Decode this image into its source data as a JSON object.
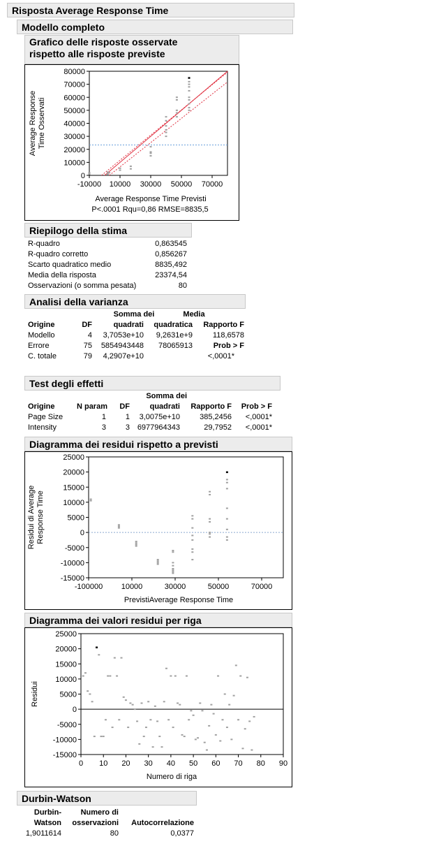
{
  "report": {
    "title": "Risposta Average Response Time",
    "model_title": "Modello completo"
  },
  "actual_by_predicted": {
    "title_line1": "Grafico delle risposte osservate",
    "title_line2": "rispetto alle risposte previste",
    "ylabel_line1": "Average Response",
    "ylabel_line2": "Time Osservati",
    "xlabel": "Average Response Time Previsti",
    "stats_caption": "P<.0001 Rqu=0,86 RMSE=8835,5",
    "y_ticks": [
      "80000",
      "70000",
      "60000",
      "50000",
      "40000",
      "30000",
      "20000",
      "10000",
      "0"
    ],
    "x_ticks": [
      "-10000",
      "10000",
      "30000",
      "50000",
      "70000"
    ]
  },
  "summary_of_fit": {
    "title": "Riepilogo della stima",
    "rows": [
      {
        "label": "R-quadro",
        "value": "0,863545"
      },
      {
        "label": "R-quadro corretto",
        "value": "0,856267"
      },
      {
        "label": "Scarto quadratico medio",
        "value": "8835,492"
      },
      {
        "label": "Media della risposta",
        "value": "23374,54"
      },
      {
        "label": "Osservazioni (o somma pesata)",
        "value": "80"
      }
    ]
  },
  "anova": {
    "title": "Analisi della varianza",
    "headers": {
      "origine": "Origine",
      "df": "DF",
      "ss_line1": "Somma dei",
      "ss_line2": "quadrati",
      "ms_line1": "Media",
      "ms_line2": "quadratica",
      "f": "Rapporto F",
      "prob": "Prob > F"
    },
    "rows": [
      {
        "source": "Modello",
        "df": "4",
        "ss": "3,7053e+10",
        "ms": "9,2631e+9",
        "f": "118,6578"
      },
      {
        "source": "Errore",
        "df": "75",
        "ss": "5854943448",
        "ms": "78065913",
        "f": "Prob > F"
      },
      {
        "source": "C. totale",
        "df": "79",
        "ss": "4,2907e+10",
        "ms": "",
        "f": "<,0001*"
      }
    ]
  },
  "effect_tests": {
    "title": "Test degli effetti",
    "headers": {
      "origine": "Origine",
      "nparam": "N param",
      "df": "DF",
      "ss_line1": "Somma dei",
      "ss_line2": "quadrati",
      "f": "Rapporto F",
      "prob": "Prob > F"
    },
    "rows": [
      {
        "source": "Page Size",
        "nparam": "1",
        "df": "1",
        "ss": "3,0075e+10",
        "f": "385,2456",
        "prob": "<,0001*"
      },
      {
        "source": "Intensity",
        "nparam": "3",
        "df": "3",
        "ss": "6977964343",
        "f": "29,7952",
        "prob": "<,0001*"
      }
    ]
  },
  "residual_by_predicted": {
    "title": "Diagramma dei residui rispetto a previsti",
    "ylabel_line1": "Residui di Average",
    "ylabel_line2": "Response Time",
    "xlabel": "PrevistiAverage Response Time",
    "y_ticks": [
      "25000",
      "20000",
      "15000",
      "10000",
      "5000",
      "0",
      "-5000",
      "-10000",
      "-15000"
    ],
    "x_ticks": [
      "-100000",
      "10000",
      "30000",
      "50000",
      "70000"
    ]
  },
  "residual_by_row": {
    "title": "Diagramma dei valori residui per riga",
    "ylabel": "Residui",
    "xlabel": "Numero di riga",
    "y_ticks": [
      "25000",
      "20000",
      "15000",
      "10000",
      "5000",
      "0",
      "-5000",
      "-10000",
      "-15000"
    ],
    "x_ticks": [
      "0",
      "10",
      "20",
      "30",
      "40",
      "50",
      "60",
      "70",
      "80",
      "90"
    ]
  },
  "durbin_watson": {
    "title": "Durbin-Watson",
    "headers": {
      "dw_line1": "Durbin-",
      "dw_line2": "Watson",
      "n_line1": "Numero di",
      "n_line2": "osservazioni",
      "auto": "Autocorrelazione"
    },
    "row": {
      "dw": "1,9011614",
      "n": "80",
      "auto": "0,0377"
    }
  },
  "colors": {
    "fit_line": "#e03040",
    "mean_line": "#6aa0dc",
    "zero_line": "#8aa8d0",
    "point": "#a0a0a0",
    "header_bg": "#ececec"
  },
  "chart_data": [
    {
      "type": "scatter",
      "title": "Grafico delle risposte osservate rispetto alle risposte previste",
      "xlabel": "Average Response Time Previsti",
      "ylabel": "Average Response Time Osservati",
      "xlim": [
        -10000,
        80000
      ],
      "ylim": [
        0,
        80000
      ],
      "fit_line": [
        [
          -10000,
          -10000
        ],
        [
          80000,
          80000
        ]
      ],
      "mean_y": 23375,
      "points": [
        [
          -10000,
          1000
        ],
        [
          -10000,
          2000
        ],
        [
          2000,
          2500
        ],
        [
          2000,
          1000
        ],
        [
          3000,
          2000
        ],
        [
          10000,
          4000
        ],
        [
          10000,
          5500
        ],
        [
          17000,
          5000
        ],
        [
          17000,
          7000
        ],
        [
          30000,
          15000
        ],
        [
          30000,
          17000
        ],
        [
          30000,
          18000
        ],
        [
          30000,
          22000
        ],
        [
          40000,
          30000
        ],
        [
          40000,
          33000
        ],
        [
          40000,
          35000
        ],
        [
          40000,
          38000
        ],
        [
          40000,
          42000
        ],
        [
          40000,
          45000
        ],
        [
          47000,
          45000
        ],
        [
          47000,
          48000
        ],
        [
          47000,
          50000
        ],
        [
          47000,
          58000
        ],
        [
          47000,
          60000
        ],
        [
          55000,
          50000
        ],
        [
          55000,
          52000
        ],
        [
          55000,
          55000
        ],
        [
          55000,
          58000
        ],
        [
          55000,
          60000
        ],
        [
          55000,
          65000
        ],
        [
          55000,
          68000
        ],
        [
          55000,
          70000
        ],
        [
          55000,
          72000
        ],
        [
          55000,
          75000
        ]
      ]
    },
    {
      "type": "scatter",
      "title": "Diagramma dei residui rispetto a previsti",
      "xlabel": "PrevistiAverage Response Time",
      "ylabel": "Residui di Average Response Time",
      "xlim": [
        -10000,
        80000
      ],
      "ylim": [
        -15000,
        25000
      ],
      "points": [
        [
          -9000,
          11000
        ],
        [
          -9000,
          10500
        ],
        [
          4000,
          2500
        ],
        [
          4000,
          2000
        ],
        [
          4000,
          1500
        ],
        [
          12000,
          -3000
        ],
        [
          12000,
          -3500
        ],
        [
          12000,
          -4000
        ],
        [
          12000,
          -4500
        ],
        [
          22000,
          -9000
        ],
        [
          22000,
          -9500
        ],
        [
          22000,
          -10000
        ],
        [
          22000,
          -10500
        ],
        [
          29000,
          -6000
        ],
        [
          29000,
          -6500
        ],
        [
          29000,
          -10000
        ],
        [
          29000,
          -11000
        ],
        [
          29000,
          -12000
        ],
        [
          29000,
          -12500
        ],
        [
          29000,
          -13000
        ],
        [
          29000,
          -13500
        ],
        [
          38000,
          5500
        ],
        [
          38000,
          4500
        ],
        [
          38000,
          1500
        ],
        [
          38000,
          -1000
        ],
        [
          38000,
          -2500
        ],
        [
          38000,
          -5500
        ],
        [
          38000,
          -6500
        ],
        [
          38000,
          -9000
        ],
        [
          46000,
          13500
        ],
        [
          46000,
          12500
        ],
        [
          46000,
          4500
        ],
        [
          46000,
          3500
        ],
        [
          46000,
          0
        ],
        [
          46000,
          -500
        ],
        [
          46000,
          -1500
        ],
        [
          54000,
          20000
        ],
        [
          54000,
          17500
        ],
        [
          54000,
          16500
        ],
        [
          54000,
          14500
        ],
        [
          54000,
          8000
        ],
        [
          54000,
          4500
        ],
        [
          54000,
          1000
        ],
        [
          54000,
          -1500
        ],
        [
          54000,
          -2500
        ]
      ]
    },
    {
      "type": "scatter",
      "title": "Diagramma dei valori residui per riga",
      "xlabel": "Numero di riga",
      "ylabel": "Residui",
      "xlim": [
        0,
        90
      ],
      "ylim": [
        -15000,
        25000
      ],
      "points": [
        [
          1,
          11000
        ],
        [
          2,
          12000
        ],
        [
          3,
          6000
        ],
        [
          4,
          5000
        ],
        [
          5,
          2500
        ],
        [
          6,
          -9000
        ],
        [
          7,
          20500
        ],
        [
          8,
          18000
        ],
        [
          9,
          -9000
        ],
        [
          10,
          -9000
        ],
        [
          11,
          -3500
        ],
        [
          12,
          11000
        ],
        [
          13,
          11000
        ],
        [
          14,
          -6000
        ],
        [
          15,
          17000
        ],
        [
          16,
          11000
        ],
        [
          17,
          -3500
        ],
        [
          18,
          17000
        ],
        [
          19,
          4000
        ],
        [
          20,
          3000
        ],
        [
          21,
          -6000
        ],
        [
          22,
          2000
        ],
        [
          23,
          1500
        ],
        [
          24,
          0
        ],
        [
          25,
          -4000
        ],
        [
          26,
          -11500
        ],
        [
          27,
          2000
        ],
        [
          28,
          -9000
        ],
        [
          29,
          -6000
        ],
        [
          30,
          2500
        ],
        [
          31,
          -3500
        ],
        [
          32,
          -12500
        ],
        [
          33,
          1000
        ],
        [
          34,
          -4000
        ],
        [
          35,
          -9000
        ],
        [
          36,
          -12500
        ],
        [
          37,
          2500
        ],
        [
          38,
          13500
        ],
        [
          39,
          -3500
        ],
        [
          40,
          11000
        ],
        [
          41,
          -6000
        ],
        [
          42,
          11000
        ],
        [
          43,
          2000
        ],
        [
          44,
          1500
        ],
        [
          45,
          -8500
        ],
        [
          46,
          -9000
        ],
        [
          47,
          11000
        ],
        [
          48,
          -3500
        ],
        [
          49,
          -500
        ],
        [
          50,
          -2000
        ],
        [
          51,
          -10000
        ],
        [
          52,
          -9500
        ],
        [
          53,
          2000
        ],
        [
          54,
          -500
        ],
        [
          55,
          -11000
        ],
        [
          56,
          -13500
        ],
        [
          57,
          -5500
        ],
        [
          58,
          1500
        ],
        [
          59,
          -1500
        ],
        [
          60,
          -8500
        ],
        [
          61,
          11000
        ],
        [
          62,
          -10500
        ],
        [
          63,
          -3500
        ],
        [
          64,
          5000
        ],
        [
          65,
          -6000
        ],
        [
          66,
          1500
        ],
        [
          67,
          -10000
        ],
        [
          68,
          4500
        ],
        [
          69,
          14500
        ],
        [
          70,
          -3500
        ],
        [
          71,
          11000
        ],
        [
          72,
          -13000
        ],
        [
          73,
          -6500
        ],
        [
          74,
          10500
        ],
        [
          75,
          -4000
        ],
        [
          76,
          -13500
        ],
        [
          77,
          -2500
        ]
      ]
    }
  ]
}
